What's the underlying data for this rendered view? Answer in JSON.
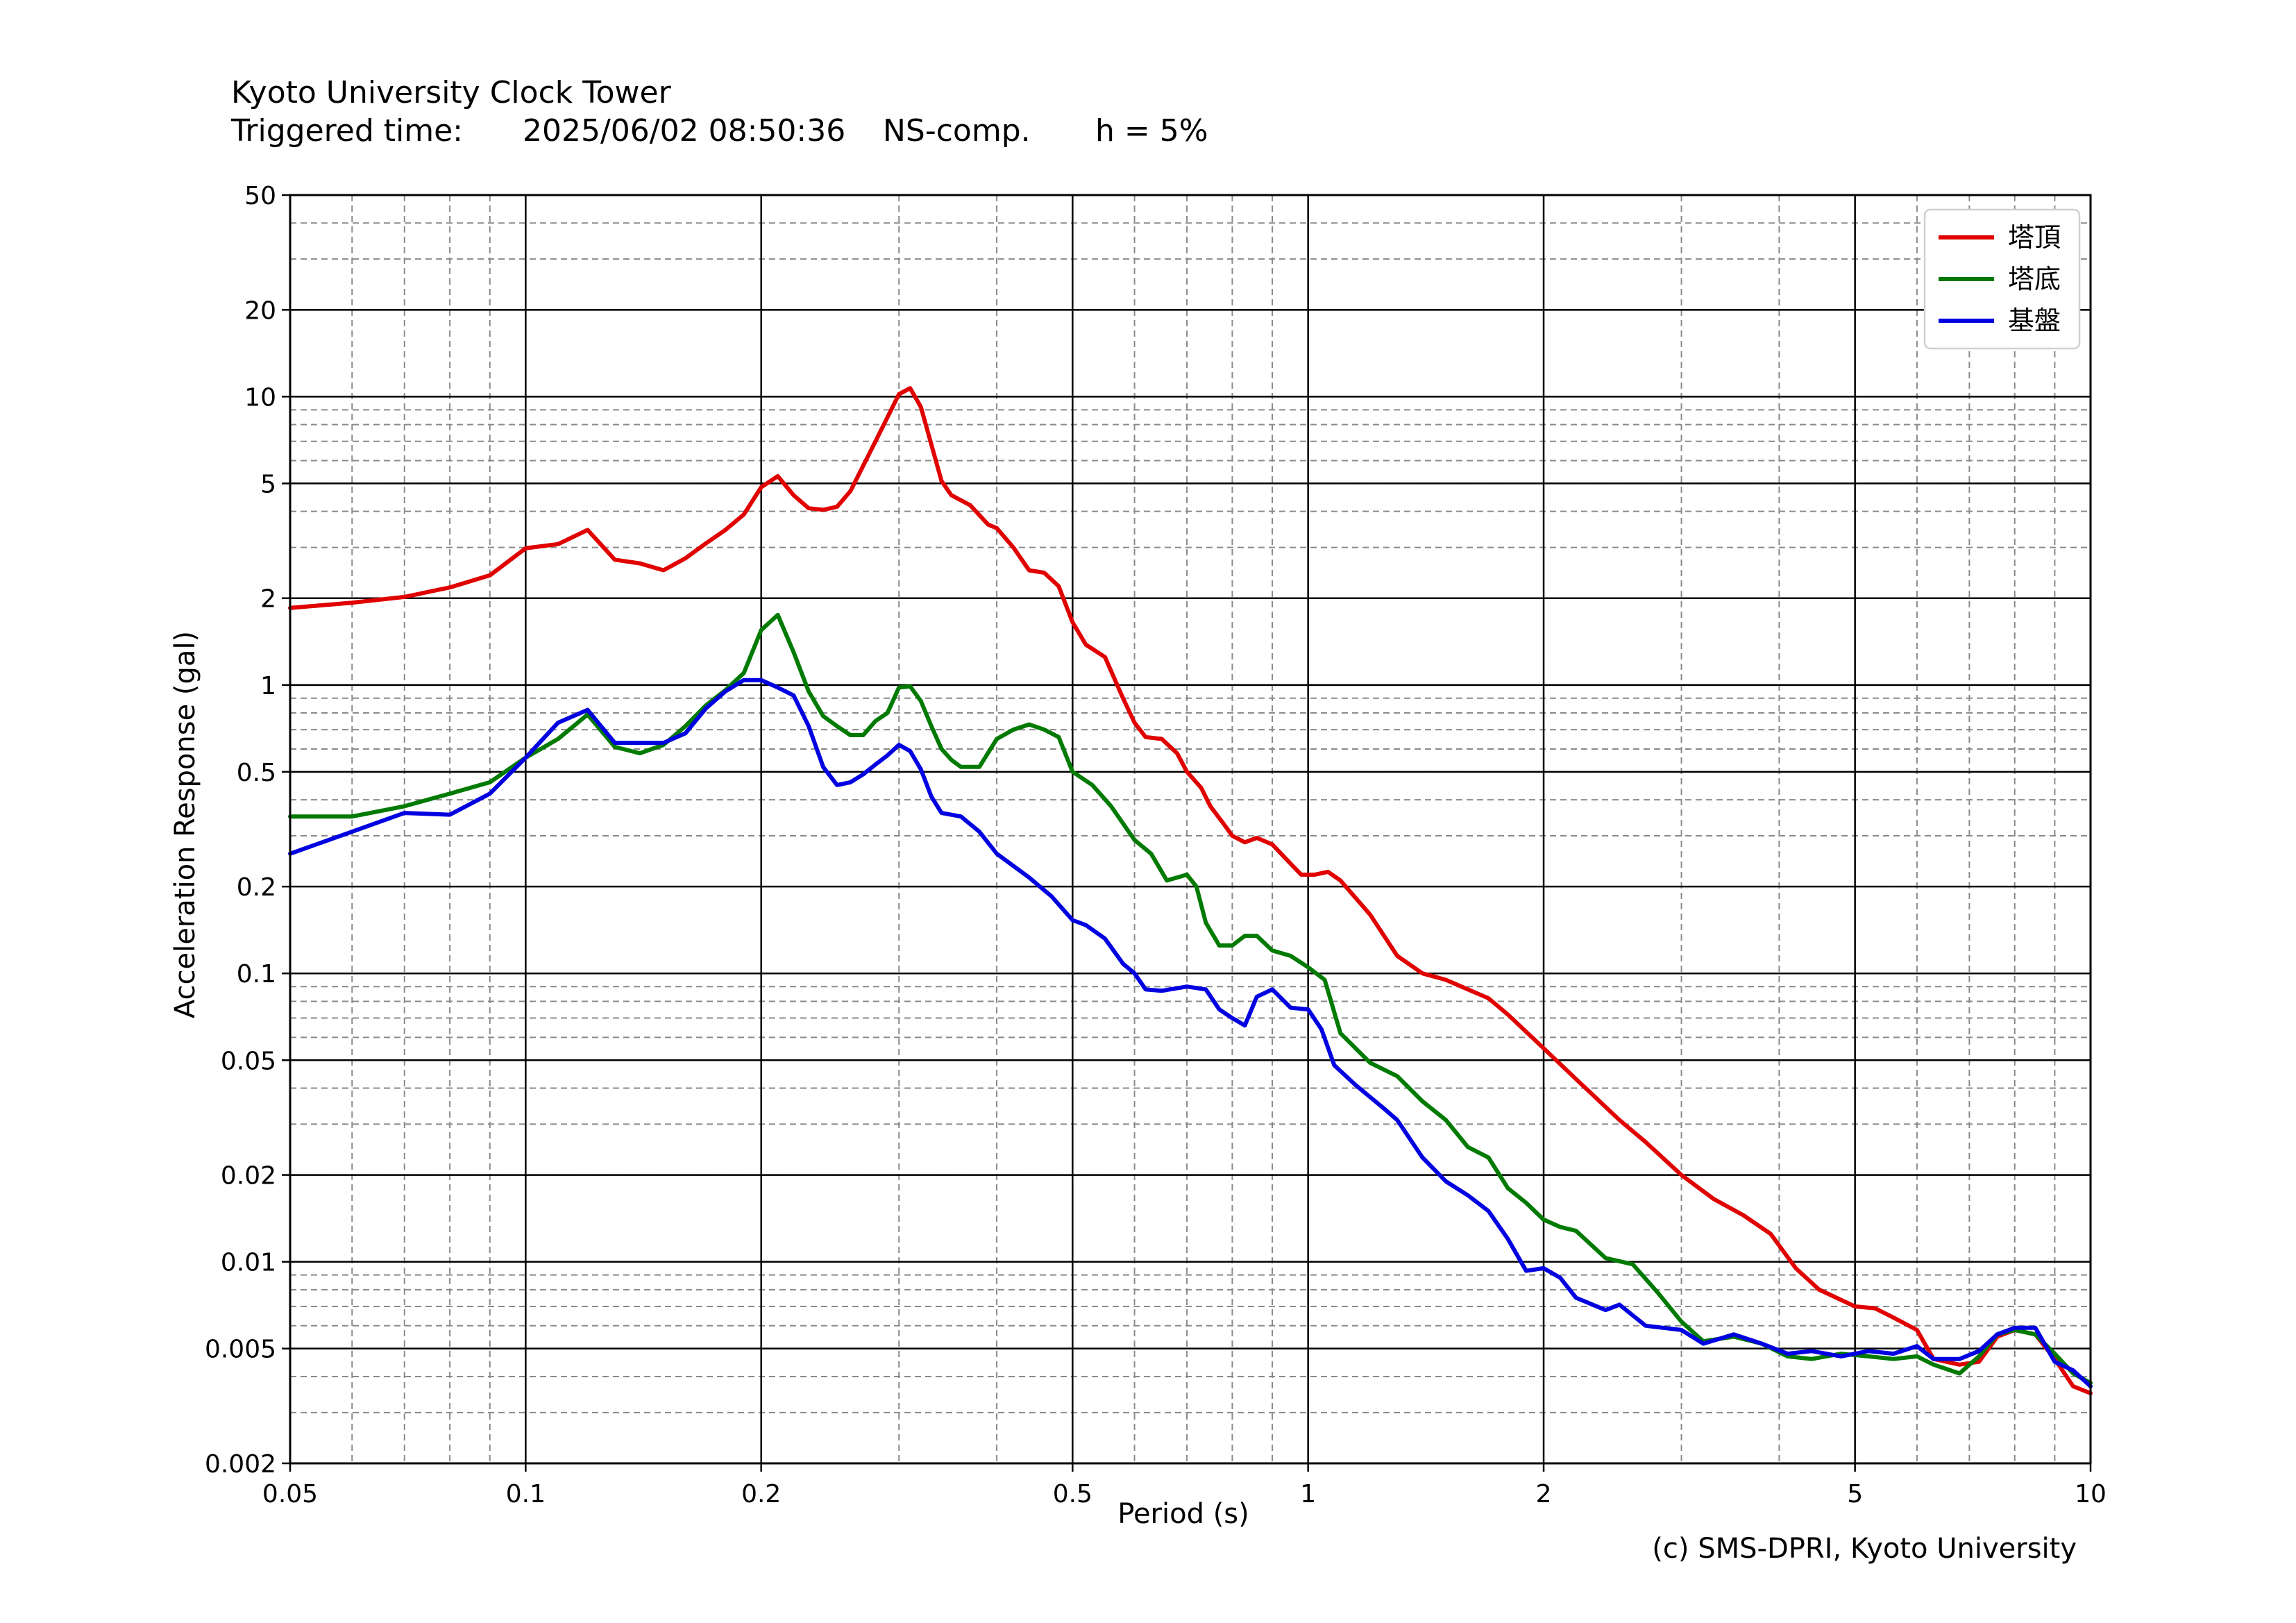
{
  "header": {
    "station": "Kyoto University Clock Tower",
    "triggered_label": "Triggered time:",
    "triggered_time": "2025/06/02 08:50:36",
    "component": "NS-comp.",
    "damping": "h = 5%"
  },
  "footer": {
    "copyright": "(c) SMS-DPRI, Kyoto University"
  },
  "chart_data": {
    "type": "line",
    "xlabel": "Period (s)",
    "ylabel": "Acceleration Response (gal)",
    "xscale": "log",
    "yscale": "log",
    "xlim": [
      0.05,
      10
    ],
    "ylim": [
      0.002,
      50
    ],
    "grid": true,
    "legend_position": "top-right",
    "x_ticks": [
      {
        "v": 0.05,
        "label": "0.05"
      },
      {
        "v": 0.1,
        "label": "0.1"
      },
      {
        "v": 0.2,
        "label": "0.2"
      },
      {
        "v": 0.5,
        "label": "0.5"
      },
      {
        "v": 1,
        "label": "1"
      },
      {
        "v": 2,
        "label": "2"
      },
      {
        "v": 5,
        "label": "5"
      },
      {
        "v": 10,
        "label": "10"
      }
    ],
    "y_ticks": [
      {
        "v": 0.002,
        "label": "0.002"
      },
      {
        "v": 0.005,
        "label": "0.005"
      },
      {
        "v": 0.01,
        "label": "0.01"
      },
      {
        "v": 0.02,
        "label": "0.02"
      },
      {
        "v": 0.05,
        "label": "0.05"
      },
      {
        "v": 0.1,
        "label": "0.1"
      },
      {
        "v": 0.2,
        "label": "0.2"
      },
      {
        "v": 0.5,
        "label": "0.5"
      },
      {
        "v": 1,
        "label": "1"
      },
      {
        "v": 2,
        "label": "2"
      },
      {
        "v": 5,
        "label": "5"
      },
      {
        "v": 10,
        "label": "10"
      },
      {
        "v": 20,
        "label": "20"
      },
      {
        "v": 50,
        "label": "50"
      }
    ],
    "series": [
      {
        "name": "塔頂",
        "color": "#e00000",
        "points": [
          [
            0.05,
            1.85
          ],
          [
            0.06,
            1.93
          ],
          [
            0.07,
            2.02
          ],
          [
            0.08,
            2.18
          ],
          [
            0.09,
            2.4
          ],
          [
            0.1,
            2.98
          ],
          [
            0.11,
            3.08
          ],
          [
            0.12,
            3.45
          ],
          [
            0.13,
            2.72
          ],
          [
            0.14,
            2.64
          ],
          [
            0.15,
            2.5
          ],
          [
            0.16,
            2.75
          ],
          [
            0.17,
            3.1
          ],
          [
            0.18,
            3.45
          ],
          [
            0.19,
            3.9
          ],
          [
            0.2,
            4.85
          ],
          [
            0.21,
            5.3
          ],
          [
            0.22,
            4.55
          ],
          [
            0.23,
            4.1
          ],
          [
            0.24,
            4.05
          ],
          [
            0.25,
            4.15
          ],
          [
            0.26,
            4.7
          ],
          [
            0.28,
            7.0
          ],
          [
            0.3,
            10.2
          ],
          [
            0.31,
            10.7
          ],
          [
            0.32,
            9.2
          ],
          [
            0.34,
            5.1
          ],
          [
            0.35,
            4.55
          ],
          [
            0.37,
            4.2
          ],
          [
            0.39,
            3.6
          ],
          [
            0.4,
            3.5
          ],
          [
            0.42,
            3.0
          ],
          [
            0.44,
            2.5
          ],
          [
            0.46,
            2.45
          ],
          [
            0.48,
            2.2
          ],
          [
            0.5,
            1.65
          ],
          [
            0.52,
            1.38
          ],
          [
            0.55,
            1.25
          ],
          [
            0.58,
            0.9
          ],
          [
            0.6,
            0.74
          ],
          [
            0.62,
            0.66
          ],
          [
            0.65,
            0.65
          ],
          [
            0.68,
            0.58
          ],
          [
            0.7,
            0.5
          ],
          [
            0.73,
            0.44
          ],
          [
            0.75,
            0.38
          ],
          [
            0.78,
            0.33
          ],
          [
            0.8,
            0.3
          ],
          [
            0.83,
            0.285
          ],
          [
            0.86,
            0.295
          ],
          [
            0.9,
            0.28
          ],
          [
            0.95,
            0.24
          ],
          [
            0.98,
            0.22
          ],
          [
            1.02,
            0.22
          ],
          [
            1.06,
            0.225
          ],
          [
            1.1,
            0.21
          ],
          [
            1.2,
            0.16
          ],
          [
            1.3,
            0.115
          ],
          [
            1.4,
            0.1
          ],
          [
            1.5,
            0.095
          ],
          [
            1.6,
            0.088
          ],
          [
            1.7,
            0.082
          ],
          [
            1.8,
            0.072
          ],
          [
            2.0,
            0.055
          ],
          [
            2.2,
            0.043
          ],
          [
            2.5,
            0.031
          ],
          [
            2.7,
            0.026
          ],
          [
            3.0,
            0.02
          ],
          [
            3.3,
            0.0165
          ],
          [
            3.6,
            0.0145
          ],
          [
            3.9,
            0.0125
          ],
          [
            4.2,
            0.0095
          ],
          [
            4.5,
            0.008
          ],
          [
            5.0,
            0.007
          ],
          [
            5.3,
            0.0069
          ],
          [
            5.6,
            0.0064
          ],
          [
            6.0,
            0.0058
          ],
          [
            6.3,
            0.0046
          ],
          [
            6.8,
            0.0044
          ],
          [
            7.2,
            0.0045
          ],
          [
            7.6,
            0.0055
          ],
          [
            8.0,
            0.0058
          ],
          [
            8.5,
            0.0056
          ],
          [
            9.0,
            0.0046
          ],
          [
            9.5,
            0.0037
          ],
          [
            10.0,
            0.0035
          ]
        ]
      },
      {
        "name": "塔底",
        "color": "#007a00",
        "points": [
          [
            0.05,
            0.35
          ],
          [
            0.06,
            0.35
          ],
          [
            0.07,
            0.38
          ],
          [
            0.08,
            0.42
          ],
          [
            0.09,
            0.46
          ],
          [
            0.1,
            0.56
          ],
          [
            0.11,
            0.65
          ],
          [
            0.12,
            0.79
          ],
          [
            0.13,
            0.61
          ],
          [
            0.14,
            0.58
          ],
          [
            0.15,
            0.62
          ],
          [
            0.16,
            0.72
          ],
          [
            0.17,
            0.85
          ],
          [
            0.18,
            0.96
          ],
          [
            0.19,
            1.1
          ],
          [
            0.2,
            1.55
          ],
          [
            0.21,
            1.75
          ],
          [
            0.22,
            1.3
          ],
          [
            0.23,
            0.95
          ],
          [
            0.24,
            0.78
          ],
          [
            0.25,
            0.72
          ],
          [
            0.26,
            0.67
          ],
          [
            0.27,
            0.67
          ],
          [
            0.28,
            0.75
          ],
          [
            0.29,
            0.8
          ],
          [
            0.3,
            0.98
          ],
          [
            0.31,
            0.99
          ],
          [
            0.32,
            0.88
          ],
          [
            0.33,
            0.72
          ],
          [
            0.34,
            0.6
          ],
          [
            0.35,
            0.55
          ],
          [
            0.36,
            0.52
          ],
          [
            0.38,
            0.52
          ],
          [
            0.4,
            0.65
          ],
          [
            0.42,
            0.7
          ],
          [
            0.44,
            0.73
          ],
          [
            0.46,
            0.7
          ],
          [
            0.48,
            0.66
          ],
          [
            0.5,
            0.5
          ],
          [
            0.53,
            0.45
          ],
          [
            0.56,
            0.38
          ],
          [
            0.6,
            0.29
          ],
          [
            0.63,
            0.26
          ],
          [
            0.66,
            0.21
          ],
          [
            0.7,
            0.22
          ],
          [
            0.72,
            0.2
          ],
          [
            0.74,
            0.15
          ],
          [
            0.77,
            0.125
          ],
          [
            0.8,
            0.125
          ],
          [
            0.83,
            0.135
          ],
          [
            0.86,
            0.135
          ],
          [
            0.9,
            0.12
          ],
          [
            0.95,
            0.115
          ],
          [
            1.0,
            0.105
          ],
          [
            1.05,
            0.095
          ],
          [
            1.1,
            0.062
          ],
          [
            1.15,
            0.055
          ],
          [
            1.2,
            0.049
          ],
          [
            1.3,
            0.044
          ],
          [
            1.4,
            0.036
          ],
          [
            1.5,
            0.031
          ],
          [
            1.6,
            0.025
          ],
          [
            1.7,
            0.023
          ],
          [
            1.8,
            0.018
          ],
          [
            1.9,
            0.016
          ],
          [
            2.0,
            0.014
          ],
          [
            2.1,
            0.0132
          ],
          [
            2.2,
            0.0128
          ],
          [
            2.4,
            0.0103
          ],
          [
            2.6,
            0.0098
          ],
          [
            2.8,
            0.0078
          ],
          [
            3.0,
            0.0062
          ],
          [
            3.2,
            0.0053
          ],
          [
            3.5,
            0.0055
          ],
          [
            3.8,
            0.0052
          ],
          [
            4.1,
            0.0047
          ],
          [
            4.4,
            0.0046
          ],
          [
            4.8,
            0.0048
          ],
          [
            5.2,
            0.0047
          ],
          [
            5.6,
            0.0046
          ],
          [
            6.0,
            0.0047
          ],
          [
            6.3,
            0.0044
          ],
          [
            6.8,
            0.0041
          ],
          [
            7.2,
            0.0047
          ],
          [
            7.6,
            0.0056
          ],
          [
            8.0,
            0.0058
          ],
          [
            8.5,
            0.0056
          ],
          [
            9.0,
            0.0048
          ],
          [
            9.5,
            0.0041
          ],
          [
            10.0,
            0.0038
          ]
        ]
      },
      {
        "name": "基盤",
        "color": "#0000e0",
        "points": [
          [
            0.05,
            0.26
          ],
          [
            0.06,
            0.31
          ],
          [
            0.07,
            0.36
          ],
          [
            0.08,
            0.355
          ],
          [
            0.09,
            0.42
          ],
          [
            0.1,
            0.56
          ],
          [
            0.11,
            0.74
          ],
          [
            0.12,
            0.82
          ],
          [
            0.13,
            0.63
          ],
          [
            0.14,
            0.63
          ],
          [
            0.15,
            0.63
          ],
          [
            0.16,
            0.68
          ],
          [
            0.17,
            0.83
          ],
          [
            0.18,
            0.95
          ],
          [
            0.19,
            1.04
          ],
          [
            0.2,
            1.04
          ],
          [
            0.21,
            0.98
          ],
          [
            0.22,
            0.92
          ],
          [
            0.23,
            0.72
          ],
          [
            0.24,
            0.52
          ],
          [
            0.25,
            0.45
          ],
          [
            0.26,
            0.46
          ],
          [
            0.27,
            0.49
          ],
          [
            0.28,
            0.53
          ],
          [
            0.29,
            0.57
          ],
          [
            0.3,
            0.62
          ],
          [
            0.31,
            0.59
          ],
          [
            0.32,
            0.51
          ],
          [
            0.33,
            0.41
          ],
          [
            0.34,
            0.36
          ],
          [
            0.36,
            0.35
          ],
          [
            0.38,
            0.31
          ],
          [
            0.4,
            0.26
          ],
          [
            0.44,
            0.215
          ],
          [
            0.47,
            0.185
          ],
          [
            0.5,
            0.153
          ],
          [
            0.52,
            0.147
          ],
          [
            0.55,
            0.132
          ],
          [
            0.58,
            0.108
          ],
          [
            0.6,
            0.1
          ],
          [
            0.62,
            0.088
          ],
          [
            0.65,
            0.087
          ],
          [
            0.7,
            0.09
          ],
          [
            0.74,
            0.088
          ],
          [
            0.77,
            0.075
          ],
          [
            0.8,
            0.07
          ],
          [
            0.83,
            0.066
          ],
          [
            0.86,
            0.083
          ],
          [
            0.9,
            0.088
          ],
          [
            0.95,
            0.076
          ],
          [
            1.0,
            0.075
          ],
          [
            1.04,
            0.064
          ],
          [
            1.08,
            0.048
          ],
          [
            1.15,
            0.041
          ],
          [
            1.25,
            0.034
          ],
          [
            1.3,
            0.031
          ],
          [
            1.4,
            0.023
          ],
          [
            1.5,
            0.019
          ],
          [
            1.6,
            0.017
          ],
          [
            1.7,
            0.015
          ],
          [
            1.8,
            0.012
          ],
          [
            1.9,
            0.0093
          ],
          [
            2.0,
            0.0095
          ],
          [
            2.1,
            0.0088
          ],
          [
            2.2,
            0.0075
          ],
          [
            2.4,
            0.0068
          ],
          [
            2.5,
            0.0071
          ],
          [
            2.7,
            0.006
          ],
          [
            3.0,
            0.0058
          ],
          [
            3.2,
            0.0052
          ],
          [
            3.5,
            0.0056
          ],
          [
            3.8,
            0.0052
          ],
          [
            4.1,
            0.0048
          ],
          [
            4.4,
            0.0049
          ],
          [
            4.8,
            0.0047
          ],
          [
            5.2,
            0.0049
          ],
          [
            5.6,
            0.0048
          ],
          [
            6.0,
            0.0051
          ],
          [
            6.3,
            0.0046
          ],
          [
            6.8,
            0.0046
          ],
          [
            7.2,
            0.0049
          ],
          [
            7.6,
            0.0056
          ],
          [
            8.0,
            0.0059
          ],
          [
            8.5,
            0.0059
          ],
          [
            9.0,
            0.0045
          ],
          [
            9.5,
            0.0042
          ],
          [
            10.0,
            0.0037
          ]
        ]
      }
    ]
  }
}
